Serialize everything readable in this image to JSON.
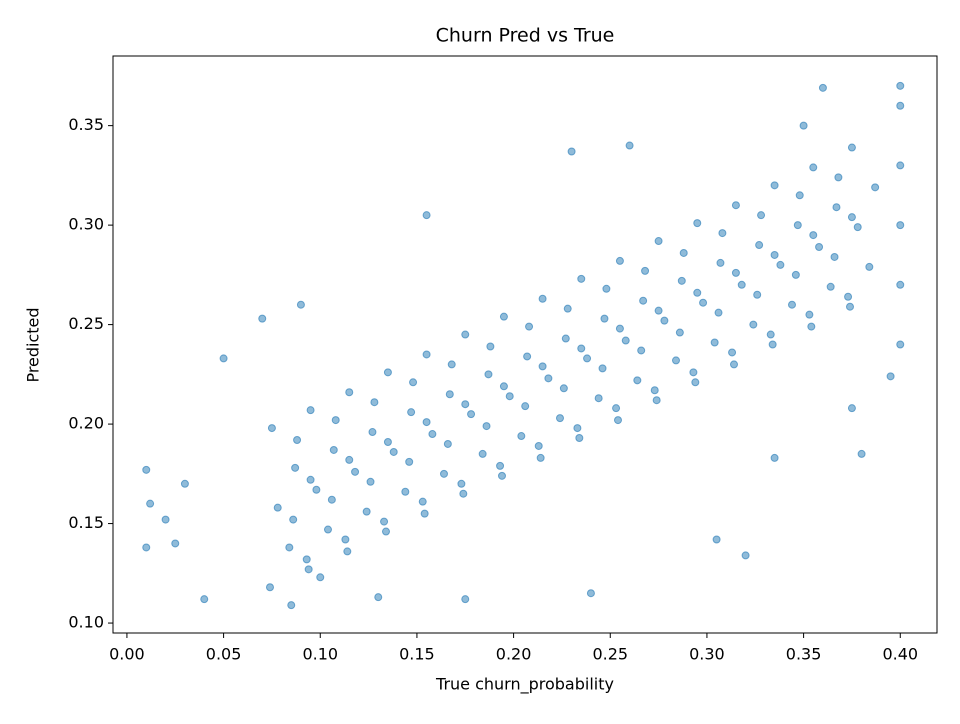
{
  "chart_data": {
    "type": "scatter",
    "title": "Churn Pred vs True",
    "x_label": "True churn_probability",
    "y_label": "Predicted",
    "color": "#1f77b4",
    "xlim": [
      -0.0072,
      0.419
    ],
    "ylim": [
      0.095,
      0.385
    ],
    "xticks": [
      {
        "value": 0,
        "label": "0.00"
      },
      0.05,
      {
        "value": 0.1,
        "label": "0.10"
      },
      0.15,
      {
        "value": 0.2,
        "label": "0.20"
      },
      0.25,
      {
        "value": 0.3,
        "label": "0.30"
      },
      0.35,
      {
        "value": 0.4,
        "label": "0.40"
      }
    ],
    "yticks": [
      {
        "value": 0.1,
        "label": "0.10"
      },
      0.15,
      {
        "value": 0.2,
        "label": "0.20"
      },
      0.25,
      {
        "value": 0.3,
        "label": "0.30"
      },
      0.35
    ],
    "x": [
      0.074,
      0.084,
      0.078,
      0.087,
      0.075,
      0.094,
      0.104,
      0.098,
      0.107,
      0.095,
      0.114,
      0.124,
      0.118,
      0.127,
      0.115,
      0.134,
      0.144,
      0.138,
      0.147,
      0.135,
      0.154,
      0.164,
      0.158,
      0.167,
      0.155,
      0.174,
      0.184,
      0.178,
      0.187,
      0.175,
      0.194,
      0.204,
      0.198,
      0.207,
      0.195,
      0.214,
      0.224,
      0.218,
      0.227,
      0.215,
      0.234,
      0.244,
      0.238,
      0.247,
      0.235,
      0.254,
      0.264,
      0.258,
      0.267,
      0.255,
      0.274,
      0.284,
      0.278,
      0.287,
      0.275,
      0.294,
      0.304,
      0.298,
      0.307,
      0.295,
      0.314,
      0.324,
      0.318,
      0.327,
      0.315,
      0.334,
      0.344,
      0.338,
      0.347,
      0.335,
      0.354,
      0.364,
      0.358,
      0.367,
      0.355,
      0.374,
      0.384,
      0.378,
      0.387,
      0.375,
      0.093,
      0.086,
      0.095,
      0.088,
      0.113,
      0.106,
      0.115,
      0.108,
      0.133,
      0.126,
      0.135,
      0.128,
      0.153,
      0.146,
      0.155,
      0.148,
      0.173,
      0.166,
      0.175,
      0.168,
      0.193,
      0.186,
      0.195,
      0.188,
      0.213,
      0.206,
      0.215,
      0.208,
      0.233,
      0.226,
      0.235,
      0.228,
      0.253,
      0.246,
      0.255,
      0.248,
      0.273,
      0.266,
      0.275,
      0.268,
      0.293,
      0.286,
      0.295,
      0.288,
      0.313,
      0.306,
      0.315,
      0.308,
      0.333,
      0.326,
      0.335,
      0.328,
      0.353,
      0.346,
      0.355,
      0.348,
      0.373,
      0.366,
      0.375,
      0.368,
      0.01,
      0.01,
      0.012,
      0.02,
      0.025,
      0.04,
      0.05,
      0.07,
      0.085,
      0.09,
      0.155,
      0.175,
      0.23,
      0.26,
      0.32,
      0.305,
      0.35,
      0.36,
      0.38,
      0.4,
      0.4,
      0.4,
      0.4,
      0.4,
      0.4,
      0.395,
      0.375,
      0.335,
      0.24,
      0.13,
      0.1,
      0.03
    ],
    "values": [
      0.118,
      0.138,
      0.158,
      0.178,
      0.198,
      0.127,
      0.147,
      0.167,
      0.187,
      0.207,
      0.136,
      0.156,
      0.176,
      0.196,
      0.216,
      0.146,
      0.166,
      0.186,
      0.206,
      0.226,
      0.155,
      0.175,
      0.195,
      0.215,
      0.235,
      0.165,
      0.185,
      0.205,
      0.225,
      0.245,
      0.174,
      0.194,
      0.214,
      0.234,
      0.254,
      0.183,
      0.203,
      0.223,
      0.243,
      0.263,
      0.193,
      0.213,
      0.233,
      0.253,
      0.273,
      0.202,
      0.222,
      0.242,
      0.262,
      0.282,
      0.212,
      0.232,
      0.252,
      0.272,
      0.292,
      0.221,
      0.241,
      0.261,
      0.281,
      0.301,
      0.23,
      0.25,
      0.27,
      0.29,
      0.31,
      0.24,
      0.26,
      0.28,
      0.3,
      0.32,
      0.249,
      0.269,
      0.289,
      0.309,
      0.329,
      0.259,
      0.279,
      0.299,
      0.319,
      0.339,
      0.132,
      0.152,
      0.172,
      0.192,
      0.142,
      0.162,
      0.182,
      0.202,
      0.151,
      0.171,
      0.191,
      0.211,
      0.161,
      0.181,
      0.201,
      0.221,
      0.17,
      0.19,
      0.21,
      0.23,
      0.179,
      0.199,
      0.219,
      0.239,
      0.189,
      0.209,
      0.229,
      0.249,
      0.198,
      0.218,
      0.238,
      0.258,
      0.208,
      0.228,
      0.248,
      0.268,
      0.217,
      0.237,
      0.257,
      0.277,
      0.226,
      0.246,
      0.266,
      0.286,
      0.236,
      0.256,
      0.276,
      0.296,
      0.245,
      0.265,
      0.285,
      0.305,
      0.255,
      0.275,
      0.295,
      0.315,
      0.264,
      0.284,
      0.304,
      0.324,
      0.177,
      0.138,
      0.16,
      0.152,
      0.14,
      0.112,
      0.233,
      0.253,
      0.109,
      0.26,
      0.305,
      0.112,
      0.337,
      0.34,
      0.134,
      0.142,
      0.35,
      0.369,
      0.185,
      0.37,
      0.36,
      0.33,
      0.3,
      0.27,
      0.24,
      0.224,
      0.208,
      0.183,
      0.115,
      0.113,
      0.123,
      0.17
    ]
  }
}
